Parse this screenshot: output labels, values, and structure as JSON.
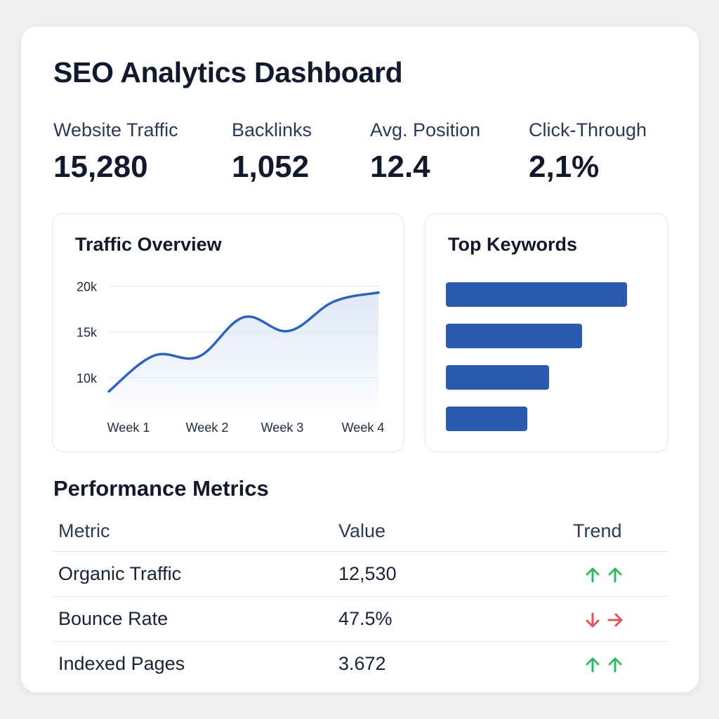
{
  "title": "SEO Analytics Dashboard",
  "stats": [
    {
      "label": "Website Traffic",
      "value": "15,280"
    },
    {
      "label": "Backlinks",
      "value": "1,052"
    },
    {
      "label": "Avg. Position",
      "value": "12.4"
    },
    {
      "label": "Click-Through",
      "value": "2,1%"
    }
  ],
  "traffic": {
    "title": "Traffic Overview"
  },
  "keywords": {
    "title": "Top Keywords",
    "bars": [
      1.0,
      0.75,
      0.57,
      0.45
    ],
    "bar_color": "#2a5bb0"
  },
  "chart_data": {
    "type": "area",
    "title": "Traffic Overview",
    "x_tick_labels": [
      "Week 1",
      "Week 2",
      "Week 3",
      "Week 4"
    ],
    "y_tick_labels": [
      "20k",
      "15k",
      "10k"
    ],
    "y_ticks": [
      20000,
      15000,
      10000
    ],
    "ylim": [
      7000,
      20500
    ],
    "x": [
      0,
      0.5,
      1.0,
      1.5,
      2.0,
      2.5,
      3.0
    ],
    "values": [
      8500,
      12400,
      12300,
      16600,
      15100,
      18300,
      19300
    ],
    "grid": true,
    "line_color": "#2c62c0",
    "fill_color": "#dfe8f6"
  },
  "performance": {
    "title": "Performance Metrics",
    "headers": {
      "metric": "Metric",
      "value": "Value",
      "trend": "Trend"
    },
    "rows": [
      {
        "metric": "Organic Traffic",
        "value": "12,530",
        "trend": [
          "up-arrow-icon",
          "up-arrow-icon"
        ],
        "color": "#2fb865"
      },
      {
        "metric": "Bounce Rate",
        "value": "47.5%",
        "trend": [
          "down-arrow-icon",
          "right-arrow-icon"
        ],
        "color": "#e35454"
      },
      {
        "metric": "Indexed Pages",
        "value": "3.672",
        "trend": [
          "up-arrow-icon",
          "up-arrow-icon"
        ],
        "color": "#2fb865"
      }
    ]
  }
}
